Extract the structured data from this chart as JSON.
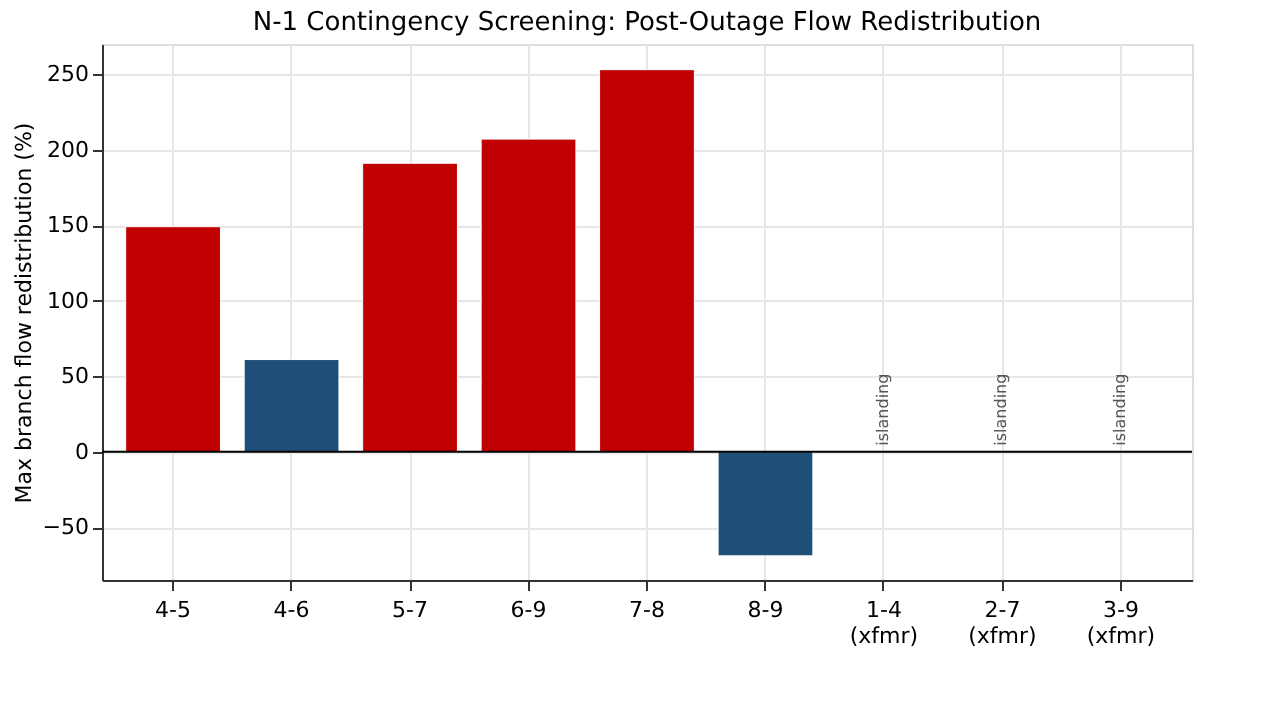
{
  "chart_data": {
    "type": "bar",
    "title": "N-1 Contingency Screening: Post-Outage Flow Redistribution",
    "ylabel": "Max branch flow redistribution (%)",
    "categories": [
      "4-5",
      "4-6",
      "5-7",
      "6-9",
      "7-8",
      "8-9",
      "1-4\n(xfmr)",
      "2-7\n(xfmr)",
      "3-9\n(xfmr)"
    ],
    "values": [
      149,
      61,
      191,
      207,
      253,
      -69,
      null,
      null,
      null
    ],
    "colors": [
      "#c00000",
      "#1f4e79",
      "#c00000",
      "#c00000",
      "#c00000",
      "#1f4e79",
      "#c00000",
      "#c00000",
      "#c00000"
    ],
    "ylim": [
      -85,
      270
    ],
    "yticks": [
      -50,
      0,
      50,
      100,
      150,
      200,
      250
    ],
    "grid": true,
    "ref_lines": [
      {
        "axis": "y",
        "value": 0,
        "color": "#000000"
      }
    ],
    "annotations": [
      {
        "text": "islanding",
        "x": "1-4\n(xfmr)",
        "y": 0
      },
      {
        "text": "islanding",
        "x": "2-7\n(xfmr)",
        "y": 0
      },
      {
        "text": "islanding",
        "x": "3-9\n(xfmr)",
        "y": 0
      }
    ]
  }
}
